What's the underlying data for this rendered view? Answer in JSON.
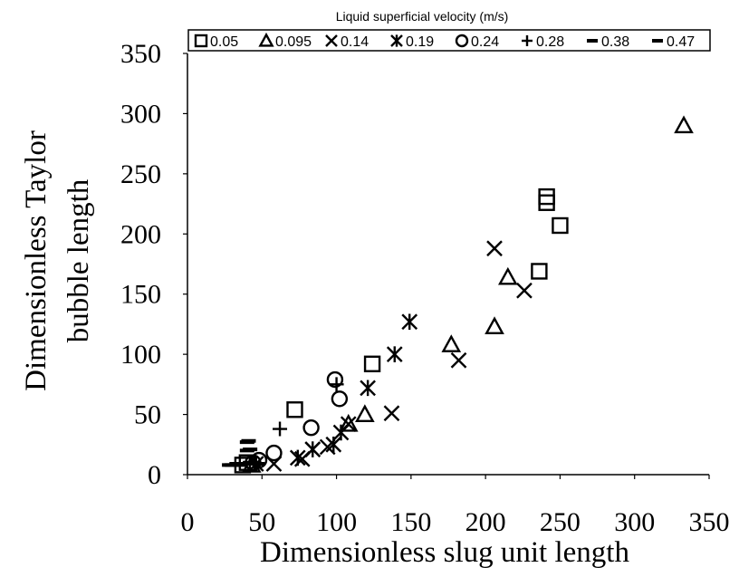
{
  "chart_data": {
    "type": "scatter",
    "title": "",
    "xlabel": "Dimensionless slug unit length",
    "ylabel_line1": "Dimensionless Taylor",
    "ylabel_line2": "bubble length",
    "xlim": [
      0,
      350
    ],
    "ylim": [
      0,
      350
    ],
    "xticks": [
      0,
      50,
      100,
      150,
      200,
      250,
      300,
      350
    ],
    "yticks": [
      0,
      50,
      100,
      150,
      200,
      250,
      300,
      350
    ],
    "grid": false,
    "legend": {
      "title": "Liquid superficial velocity (m/s)",
      "placement": "top"
    },
    "series": [
      {
        "name": "0.05",
        "marker": "square",
        "points": [
          [
            37,
            8
          ],
          [
            40,
            10
          ],
          [
            72,
            54
          ],
          [
            124,
            92
          ],
          [
            236,
            169
          ],
          [
            241,
            226
          ],
          [
            241,
            231
          ],
          [
            250,
            207
          ]
        ]
      },
      {
        "name": "0.095",
        "marker": "triangle",
        "points": [
          [
            43,
            8
          ],
          [
            108,
            42
          ],
          [
            119,
            50
          ],
          [
            177,
            108
          ],
          [
            206,
            123
          ],
          [
            215,
            164
          ],
          [
            333,
            290
          ]
        ]
      },
      {
        "name": "0.14",
        "marker": "x",
        "points": [
          [
            58,
            9
          ],
          [
            77,
            13
          ],
          [
            84,
            21
          ],
          [
            94,
            23
          ],
          [
            108,
            42
          ],
          [
            137,
            51
          ],
          [
            182,
            95
          ],
          [
            206,
            188
          ],
          [
            226,
            153
          ]
        ]
      },
      {
        "name": "0.19",
        "marker": "asterisk",
        "points": [
          [
            46,
            9
          ],
          [
            74,
            14
          ],
          [
            84,
            21
          ],
          [
            98,
            25
          ],
          [
            103,
            35
          ],
          [
            121,
            72
          ],
          [
            139,
            100
          ],
          [
            149,
            127
          ]
        ]
      },
      {
        "name": "0.24",
        "marker": "circle",
        "points": [
          [
            44,
            10
          ],
          [
            48,
            12
          ],
          [
            58,
            18
          ],
          [
            83,
            39
          ],
          [
            99,
            79
          ],
          [
            102,
            63
          ]
        ]
      },
      {
        "name": "0.28",
        "marker": "plus",
        "points": [
          [
            46,
            9
          ],
          [
            62,
            38
          ],
          [
            100,
            75
          ]
        ]
      },
      {
        "name": "0.38",
        "marker": "dash",
        "points": [
          [
            30,
            8
          ],
          [
            35,
            8
          ],
          [
            40,
            27
          ],
          [
            42,
            10
          ],
          [
            42,
            21
          ],
          [
            47,
            9
          ]
        ]
      },
      {
        "name": "0.47",
        "marker": "dash",
        "points": [
          [
            28,
            8
          ],
          [
            33,
            9
          ],
          [
            38,
            9
          ],
          [
            40,
            20
          ],
          [
            41,
            28
          ]
        ]
      }
    ]
  }
}
